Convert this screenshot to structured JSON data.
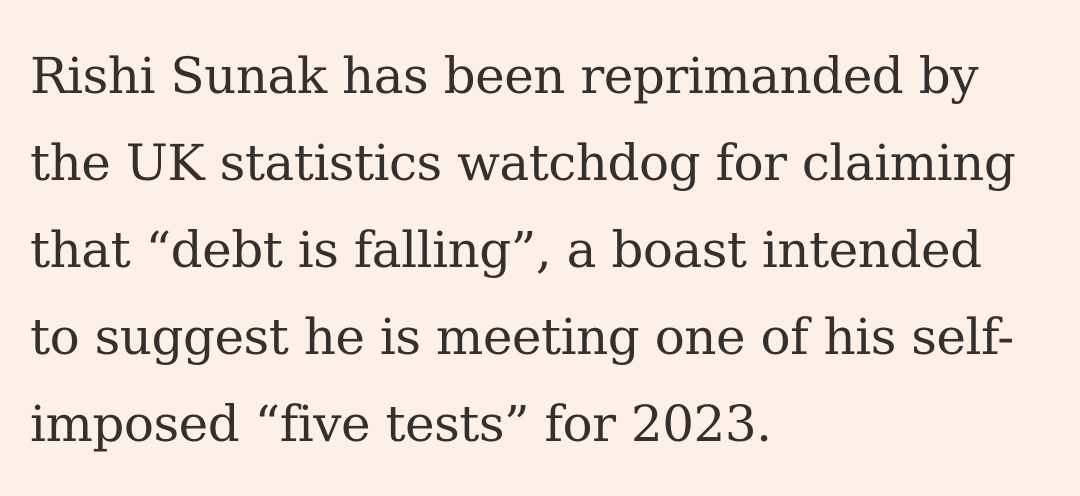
{
  "article": {
    "lines": [
      "Rishi Sunak has been reprimanded by",
      "the UK statistics watchdog for claiming",
      "that “debt is falling”, a boast intended",
      "to suggest he is meeting one of his self-",
      "imposed “five tests” for 2023."
    ]
  }
}
